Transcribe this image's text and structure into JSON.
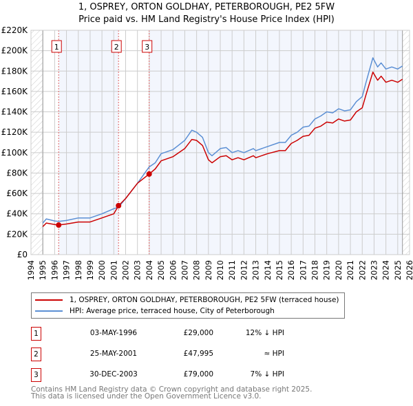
{
  "chart_data": {
    "type": "line",
    "title": "1, OSPREY, ORTON GOLDHAY, PETERBOROUGH, PE2 5FW",
    "subtitle": "Price paid vs. HM Land Registry's House Price Index (HPI)",
    "xlim": [
      1994,
      2026
    ],
    "ylim": [
      0,
      220000
    ],
    "x_ticks": [
      "1994",
      "1995",
      "1996",
      "1997",
      "1998",
      "1999",
      "2000",
      "2001",
      "2002",
      "2003",
      "2004",
      "2005",
      "2006",
      "2007",
      "2008",
      "2009",
      "2010",
      "2011",
      "2012",
      "2013",
      "2014",
      "2015",
      "2016",
      "2017",
      "2018",
      "2019",
      "2020",
      "2021",
      "2022",
      "2023",
      "2024",
      "2025",
      "2026"
    ],
    "y_ticks": [
      {
        "v": 0,
        "l": "£0"
      },
      {
        "v": 20000,
        "l": "£20K"
      },
      {
        "v": 40000,
        "l": "£40K"
      },
      {
        "v": 60000,
        "l": "£60K"
      },
      {
        "v": 80000,
        "l": "£80K"
      },
      {
        "v": 100000,
        "l": "£100K"
      },
      {
        "v": 120000,
        "l": "£120K"
      },
      {
        "v": 140000,
        "l": "£140K"
      },
      {
        "v": 160000,
        "l": "£160K"
      },
      {
        "v": 180000,
        "l": "£180K"
      },
      {
        "v": 200000,
        "l": "£200K"
      },
      {
        "v": 220000,
        "l": "£220K"
      }
    ],
    "grid": true,
    "data_range": [
      1995.0,
      2025.4
    ],
    "series": [
      {
        "name": "1, OSPREY, ORTON GOLDHAY, PETERBOROUGH, PE2 5FW (terraced house)",
        "color": "#cc0000",
        "x": [
          1995.0,
          1995.3,
          1996.0,
          1996.34,
          1997.0,
          1998.0,
          1999.0,
          2000.0,
          2001.0,
          2001.4,
          2002.0,
          2003.0,
          2003.99,
          2004.5,
          2005.0,
          2006.0,
          2007.0,
          2007.6,
          2008.0,
          2008.5,
          2009.0,
          2009.3,
          2010.0,
          2010.5,
          2011.0,
          2011.5,
          2012.0,
          2012.8,
          2013.0,
          2014.0,
          2015.0,
          2015.5,
          2016.0,
          2016.5,
          2017.0,
          2017.5,
          2018.0,
          2018.5,
          2019.0,
          2019.5,
          2020.0,
          2020.5,
          2021.0,
          2021.5,
          2022.0,
          2022.3,
          2022.9,
          2023.3,
          2023.6,
          2024.0,
          2024.5,
          2025.0,
          2025.4
        ],
        "y": [
          27500,
          31000,
          29500,
          29000,
          30000,
          32000,
          32000,
          36000,
          40000,
          47995,
          55000,
          70000,
          79000,
          84000,
          92000,
          96000,
          104000,
          113000,
          112000,
          107000,
          93000,
          90000,
          96000,
          97000,
          93000,
          95000,
          93000,
          97000,
          95000,
          99000,
          102000,
          102000,
          109000,
          112000,
          116000,
          117000,
          124000,
          126000,
          130000,
          129000,
          133000,
          131000,
          132000,
          140000,
          144000,
          156000,
          179000,
          171000,
          175000,
          169000,
          171000,
          169000,
          172000
        ]
      },
      {
        "name": "HPI: Average price, terraced house, City of Peterborough",
        "color": "#5b8fd4",
        "x": [
          1995.0,
          1995.3,
          1996.0,
          1996.34,
          1997.0,
          1998.0,
          1999.0,
          2000.0,
          2001.0,
          2001.4,
          2002.0,
          2003.0,
          2003.99,
          2004.5,
          2005.0,
          2006.0,
          2007.0,
          2007.6,
          2008.0,
          2008.5,
          2009.0,
          2009.3,
          2010.0,
          2010.5,
          2011.0,
          2011.5,
          2012.0,
          2012.8,
          2013.0,
          2014.0,
          2015.0,
          2015.5,
          2016.0,
          2016.5,
          2017.0,
          2017.5,
          2018.0,
          2018.5,
          2019.0,
          2019.5,
          2020.0,
          2020.5,
          2021.0,
          2021.5,
          2022.0,
          2022.3,
          2022.9,
          2023.3,
          2023.6,
          2024.0,
          2024.5,
          2025.0,
          2025.4
        ],
        "y": [
          31000,
          35000,
          33000,
          32500,
          33500,
          36000,
          36000,
          40000,
          45000,
          46500,
          55000,
          70000,
          86000,
          90000,
          99000,
          103000,
          112000,
          122000,
          120000,
          115000,
          100000,
          97000,
          104000,
          105000,
          100000,
          102000,
          100000,
          104000,
          102000,
          106000,
          110000,
          110000,
          117000,
          120000,
          125000,
          126000,
          133000,
          136000,
          140000,
          139000,
          143000,
          141000,
          142000,
          150000,
          155000,
          168000,
          193000,
          184000,
          188000,
          182000,
          184000,
          182000,
          185000
        ]
      }
    ],
    "sales": [
      {
        "label": "1",
        "x": 1996.34,
        "y": 29000
      },
      {
        "label": "2",
        "x": 2001.4,
        "y": 47995
      },
      {
        "label": "3",
        "x": 2003.99,
        "y": 79000
      }
    ],
    "legend_placement": "below"
  },
  "title_line1": "1, OSPREY, ORTON GOLDHAY, PETERBOROUGH, PE2 5FW",
  "title_line2": "Price paid vs. HM Land Registry's House Price Index (HPI)",
  "legend": {
    "property": "1, OSPREY, ORTON GOLDHAY, PETERBOROUGH, PE2 5FW (terraced house)",
    "hpi": "HPI: Average price, terraced house, City of Peterborough"
  },
  "transactions": [
    {
      "num": "1",
      "date": "03-MAY-1996",
      "price": "£29,000",
      "change": "12% ↓ HPI"
    },
    {
      "num": "2",
      "date": "25-MAY-2001",
      "price": "£47,995",
      "change": "≈ HPI"
    },
    {
      "num": "3",
      "date": "30-DEC-2003",
      "price": "£79,000",
      "change": "7% ↓ HPI"
    }
  ],
  "footer": {
    "line1": "Contains HM Land Registry data © Crown copyright and database right 2025.",
    "line2": "This data is licensed under the Open Government Licence v3.0."
  }
}
